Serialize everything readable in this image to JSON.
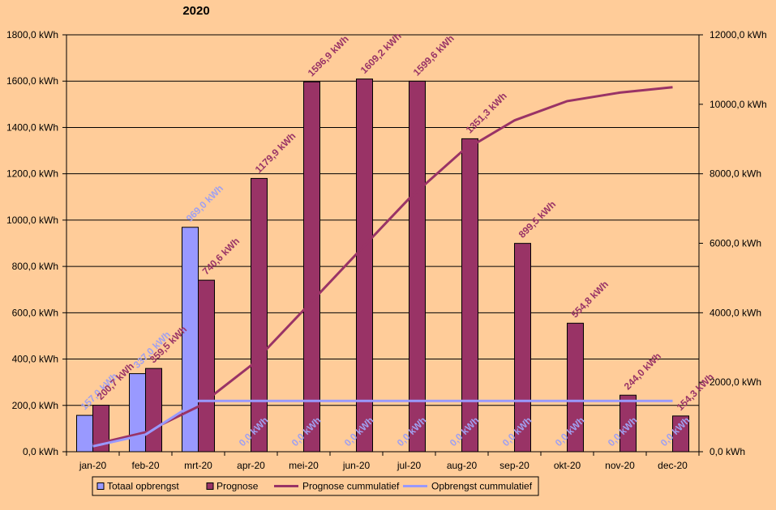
{
  "chart_data": {
    "type": "bar",
    "title": "2020",
    "categories": [
      "jan-20",
      "feb-20",
      "mrt-20",
      "apr-20",
      "mei-20",
      "jun-20",
      "jul-20",
      "aug-20",
      "sep-20",
      "okt-20",
      "nov-20",
      "dec-20"
    ],
    "y_left": {
      "min": 0,
      "max": 1800,
      "step": 200,
      "tick_labels": [
        "0,0 kWh",
        "200,0 kWh",
        "400,0 kWh",
        "600,0 kWh",
        "800,0 kWh",
        "1000,0 kWh",
        "1200,0 kWh",
        "1400,0 kWh",
        "1600,0 kWh",
        "1800,0 kWh"
      ]
    },
    "y_right": {
      "min": 0,
      "max": 12000,
      "step": 2000,
      "tick_labels": [
        "0,0 kWh",
        "2000,0 kWh",
        "4000,0 kWh",
        "6000,0 kWh",
        "8000,0 kWh",
        "10000,0 kWh",
        "12000,0 kWh"
      ]
    },
    "grid": true,
    "legend_position": "bottom",
    "series": [
      {
        "name": "Totaal opbrengst",
        "kind": "bar",
        "axis": "left",
        "color": "#9999FF",
        "label_color": "#A0A0F0",
        "values": [
          157,
          337,
          969,
          0,
          0,
          0,
          0,
          0,
          0,
          0,
          0,
          0
        ],
        "labels": [
          "157,0 kWh",
          "337,0 kWh",
          "969,0 kWh",
          "0,0 kWh",
          "0,0 kWh",
          "0,0 kWh",
          "0,0 kWh",
          "0,0 kWh",
          "0,0 kWh",
          "0,0 kWh",
          "0,0 kWh",
          "0,0 kWh"
        ]
      },
      {
        "name": "Prognose",
        "kind": "bar",
        "axis": "left",
        "color": "#993366",
        "label_color": "#993366",
        "values": [
          200.7,
          359.5,
          740.6,
          1179.9,
          1596.9,
          1609.2,
          1599.6,
          1351.3,
          899.5,
          554.8,
          244.0,
          154.3
        ],
        "labels": [
          "200,7 kWh",
          "359,5 kWh",
          "740,6 kWh",
          "1179,9 kWh",
          "1596,9 kWh",
          "1609,2 kWh",
          "1599,6 kWh",
          "1351,3 kWh",
          "899,5 kWh",
          "554,8 kWh",
          "244,0 kWh",
          "154,3 kWh"
        ]
      },
      {
        "name": "Prognose cummulatief",
        "kind": "line",
        "axis": "right",
        "color": "#993366",
        "values": [
          200.7,
          560.2,
          1300.8,
          2480.7,
          4077.6,
          5686.8,
          7286.4,
          8637.7,
          9537.2,
          10092.0,
          10336.0,
          10490.3
        ]
      },
      {
        "name": "Opbrengst cummulatief",
        "kind": "line",
        "axis": "right",
        "color": "#9999FF",
        "values": [
          157,
          494,
          1463,
          1463,
          1463,
          1463,
          1463,
          1463,
          1463,
          1463,
          1463,
          1463
        ]
      }
    ]
  }
}
